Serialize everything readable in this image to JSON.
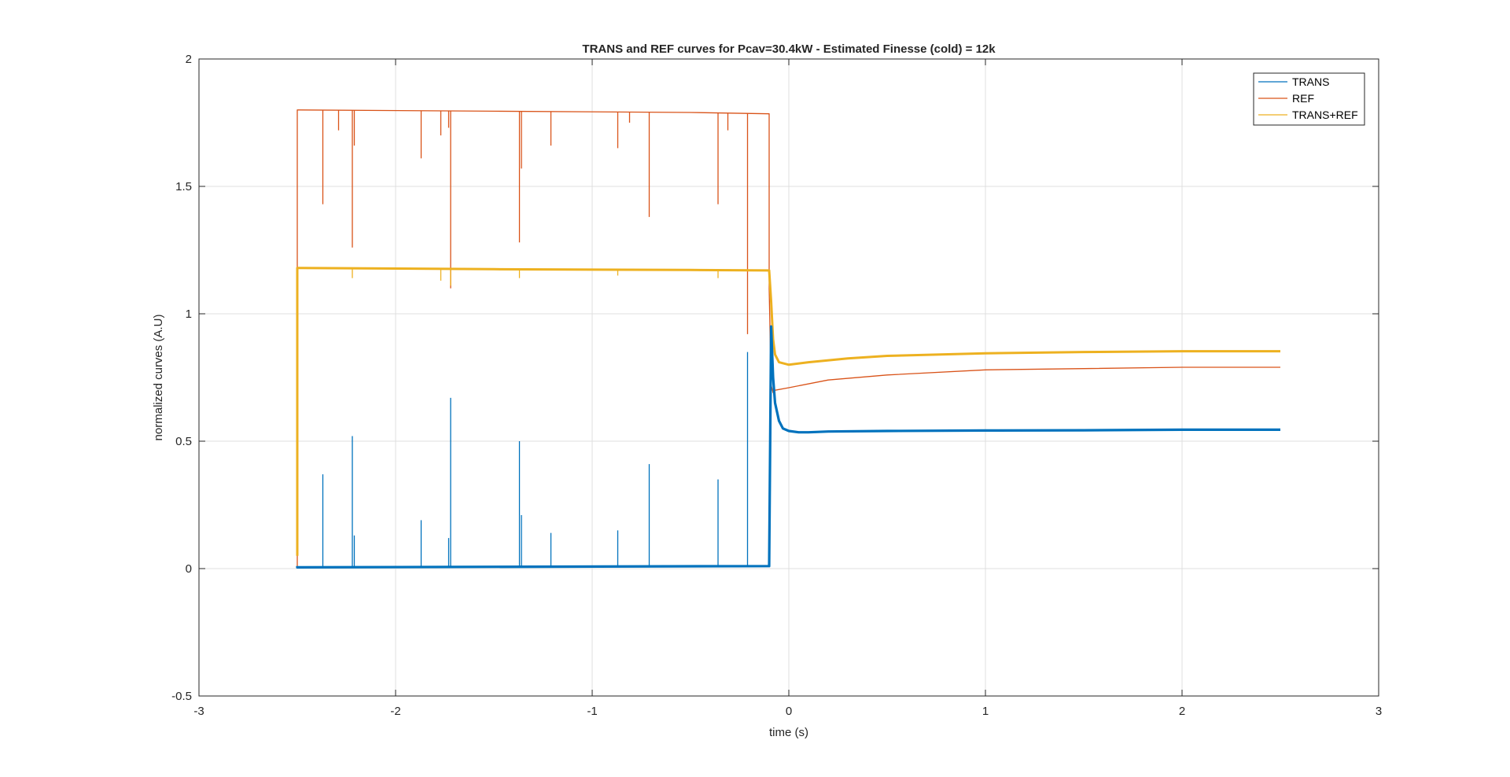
{
  "chart_data": {
    "type": "line",
    "title": "TRANS and REF curves for Pcav=30.4kW - Estimated Finesse (cold) = 12k",
    "xlabel": "time (s)",
    "ylabel": "normalized curves (A.U)",
    "xlim": [
      -3,
      3
    ],
    "ylim": [
      -0.5,
      2
    ],
    "xticks": [
      -3,
      -2,
      -1,
      0,
      1,
      2,
      3
    ],
    "yticks": [
      -0.5,
      0,
      0.5,
      1,
      1.5,
      2
    ],
    "xtick_labels": [
      "-3",
      "-2",
      "-1",
      "0",
      "1",
      "2",
      "3"
    ],
    "ytick_labels": [
      "-0.5",
      "0",
      "0.5",
      "1",
      "1.5",
      "2"
    ],
    "grid": true,
    "legend_position": "top-right",
    "series": [
      {
        "name": "TRANS",
        "color": "#0072BD",
        "points": [
          [
            -2.5,
            0.01
          ],
          [
            -2.5,
            0.005
          ],
          [
            -0.1,
            0.01
          ],
          [
            -0.09,
            0.95
          ],
          [
            -0.08,
            0.75
          ],
          [
            -0.07,
            0.65
          ],
          [
            -0.05,
            0.58
          ],
          [
            -0.03,
            0.55
          ],
          [
            0.0,
            0.54
          ],
          [
            0.05,
            0.535
          ],
          [
            0.1,
            0.535
          ],
          [
            0.2,
            0.538
          ],
          [
            0.5,
            0.54
          ],
          [
            1.0,
            0.542
          ],
          [
            1.5,
            0.543
          ],
          [
            2.0,
            0.545
          ],
          [
            2.5,
            0.545
          ]
        ],
        "spikes": [
          [
            -2.37,
            0.37
          ],
          [
            -2.22,
            0.52
          ],
          [
            -2.21,
            0.13
          ],
          [
            -1.87,
            0.19
          ],
          [
            -1.72,
            0.67
          ],
          [
            -1.73,
            0.12
          ],
          [
            -1.37,
            0.5
          ],
          [
            -1.36,
            0.21
          ],
          [
            -1.21,
            0.14
          ],
          [
            -0.87,
            0.15
          ],
          [
            -0.71,
            0.41
          ],
          [
            -0.36,
            0.35
          ],
          [
            -0.21,
            0.85
          ]
        ]
      },
      {
        "name": "REF",
        "color": "#D95319",
        "points": [
          [
            -2.5,
            0.0
          ],
          [
            -2.5,
            1.8
          ],
          [
            -1.5,
            1.795
          ],
          [
            -0.5,
            1.79
          ],
          [
            -0.1,
            1.785
          ],
          [
            -0.1,
            1.1
          ],
          [
            -0.09,
            0.72
          ],
          [
            -0.08,
            0.69
          ],
          [
            -0.07,
            0.7
          ],
          [
            0.0,
            0.71
          ],
          [
            0.2,
            0.74
          ],
          [
            0.5,
            0.76
          ],
          [
            1.0,
            0.78
          ],
          [
            1.5,
            0.785
          ],
          [
            2.0,
            0.79
          ],
          [
            2.5,
            0.79
          ]
        ],
        "spikes": [
          [
            -2.37,
            1.43
          ],
          [
            -2.22,
            1.26
          ],
          [
            -2.21,
            1.66
          ],
          [
            -2.29,
            1.72
          ],
          [
            -1.87,
            1.61
          ],
          [
            -1.77,
            1.7
          ],
          [
            -1.72,
            1.1
          ],
          [
            -1.73,
            1.73
          ],
          [
            -1.37,
            1.28
          ],
          [
            -1.36,
            1.57
          ],
          [
            -1.21,
            1.66
          ],
          [
            -0.87,
            1.65
          ],
          [
            -0.71,
            1.38
          ],
          [
            -0.81,
            1.75
          ],
          [
            -0.36,
            1.43
          ],
          [
            -0.21,
            0.92
          ],
          [
            -0.31,
            1.72
          ]
        ]
      },
      {
        "name": "TRANS+REF",
        "color": "#EDB120",
        "points": [
          [
            -2.5,
            0.05
          ],
          [
            -2.5,
            1.18
          ],
          [
            -1.5,
            1.175
          ],
          [
            -0.5,
            1.172
          ],
          [
            -0.1,
            1.17
          ],
          [
            -0.09,
            1.05
          ],
          [
            -0.08,
            0.9
          ],
          [
            -0.07,
            0.84
          ],
          [
            -0.05,
            0.81
          ],
          [
            0.0,
            0.8
          ],
          [
            0.1,
            0.81
          ],
          [
            0.3,
            0.825
          ],
          [
            0.5,
            0.835
          ],
          [
            1.0,
            0.845
          ],
          [
            1.5,
            0.85
          ],
          [
            2.0,
            0.853
          ],
          [
            2.5,
            0.853
          ]
        ],
        "spikes": [
          [
            -2.22,
            1.14
          ],
          [
            -1.77,
            1.13
          ],
          [
            -1.72,
            1.11
          ],
          [
            -1.37,
            1.14
          ],
          [
            -0.87,
            1.15
          ],
          [
            -0.36,
            1.14
          ]
        ]
      }
    ]
  }
}
